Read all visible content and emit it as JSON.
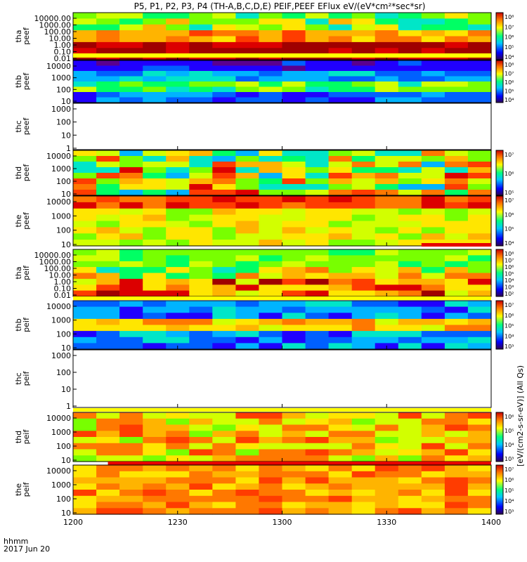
{
  "title": "P5, P1, P2, P3, P4 (TH-A,B,C,D,E) PEIF,PEEF EFlux eV/(eV*cm²*sec*sr)",
  "time_axis": {
    "ticks": [
      "1200",
      "1230",
      "1300",
      "1330",
      "1400"
    ],
    "label_line1": "hhmm",
    "label_line2": "2017 Jun 20"
  },
  "colorbar_label": "[eV/(cm2-s-sr-eV)] (All Qs)",
  "colors": {
    "red": "#e60000",
    "yellow": "#ffff00",
    "dark_red": "#9b0000",
    "background": "#ffffff"
  },
  "chart_data": [
    {
      "type": "heatmap",
      "id": "tha_peef",
      "ylabel": [
        "tha",
        "peef"
      ],
      "yticks": [
        "10000.00",
        "1000.00",
        "100.00",
        "10.00",
        "1.00",
        "0.10",
        "0.01"
      ],
      "colorbar_ticks": [
        "10⁸",
        "10⁷",
        "10⁶",
        "10⁵",
        "10⁴"
      ],
      "flag_bar": {
        "color": "yellow",
        "from": "1200",
        "to": "1400"
      },
      "has_data": true
    },
    {
      "type": "heatmap",
      "id": "thb_peef",
      "ylabel": [
        "thb",
        "peef"
      ],
      "yticks": [
        "10000",
        "1000",
        "100",
        "10"
      ],
      "colorbar_ticks": [
        "10⁸",
        "10⁷",
        "10⁶",
        "10⁵",
        "10⁴"
      ],
      "has_data": true
    },
    {
      "type": "heatmap",
      "id": "thc_peef",
      "ylabel": [
        "thc",
        "peef"
      ],
      "yticks": [
        "1000",
        "100",
        "10",
        "1"
      ],
      "colorbar_ticks": [],
      "has_data": false
    },
    {
      "type": "heatmap",
      "id": "thd_peef",
      "ylabel": [
        "thd",
        "peef"
      ],
      "yticks": [
        "10000",
        "1000",
        "100",
        "10"
      ],
      "colorbar_ticks": [
        "10⁷",
        "10⁶",
        "10⁵"
      ],
      "has_data": true
    },
    {
      "type": "heatmap",
      "id": "the_peef",
      "ylabel": [
        "the",
        "peef"
      ],
      "yticks": [
        "10000",
        "1000",
        "100",
        "10"
      ],
      "colorbar_ticks": [
        "10⁷",
        "10⁶",
        "10⁵",
        "10⁴"
      ],
      "flag_bar": {
        "color": "red",
        "from": "1340",
        "to": "1400"
      },
      "has_data": true
    },
    {
      "type": "heatmap",
      "id": "tha_peif",
      "ylabel": [
        "tha",
        "peif"
      ],
      "yticks": [
        "10000.00",
        "1000.00",
        "100.00",
        "10.00",
        "1.00",
        "0.10",
        "0.01"
      ],
      "colorbar_ticks": [
        "10⁸",
        "10⁷",
        "10⁶",
        "10⁵",
        "10⁴",
        "10³",
        "10²"
      ],
      "flag_bar": {
        "color": "yellow",
        "from": "1200",
        "to": "1400"
      },
      "has_data": true
    },
    {
      "type": "heatmap",
      "id": "thb_peif",
      "ylabel": [
        "thb",
        "peif"
      ],
      "yticks": [
        "10000",
        "1000",
        "100",
        "10"
      ],
      "colorbar_ticks": [
        "10⁷",
        "10⁶",
        "10⁵",
        "10⁴",
        "10³"
      ],
      "has_data": true
    },
    {
      "type": "heatmap",
      "id": "thc_peif",
      "ylabel": [
        "thc",
        "peif"
      ],
      "yticks": [
        "1000",
        "100",
        "10",
        "1"
      ],
      "colorbar_ticks": [],
      "flag_bar": {
        "color": "yellow",
        "from": "1200",
        "to": "1400"
      },
      "has_data": false
    },
    {
      "type": "heatmap",
      "id": "thd_peif",
      "ylabel": [
        "thd",
        "peif"
      ],
      "yticks": [
        "10000",
        "1000",
        "100",
        "10"
      ],
      "colorbar_ticks": [
        "10⁶",
        "10⁵",
        "10⁴",
        "10³"
      ],
      "flag_bar": {
        "color": "red",
        "from": "1210",
        "to": "1400"
      },
      "has_data": true
    },
    {
      "type": "heatmap",
      "id": "the_peif",
      "ylabel": [
        "the",
        "peif"
      ],
      "yticks": [
        "10000",
        "1000",
        "100",
        "10"
      ],
      "colorbar_ticks": [
        "10⁷",
        "10⁶",
        "10⁵",
        "10⁴",
        "10³"
      ],
      "has_data": true
    }
  ]
}
